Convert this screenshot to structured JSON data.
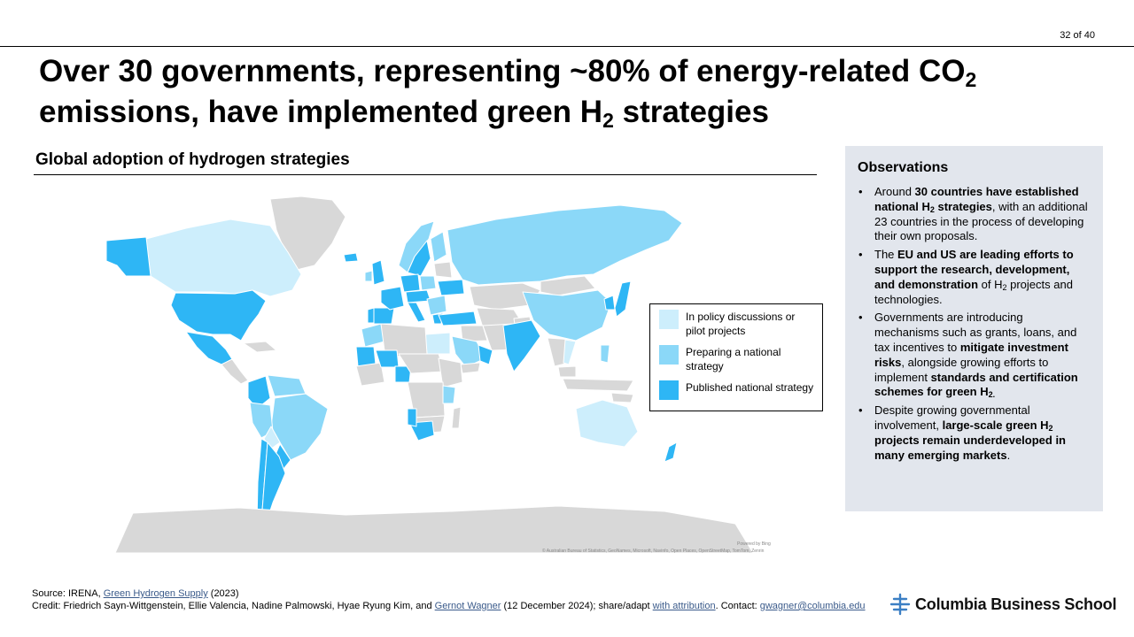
{
  "page": {
    "page_number": "32 of 40",
    "title_line1_pre": "Over 30 governments, representing ~80% of energy-related CO",
    "title_line1_sub": "2",
    "title_line2_pre": "emissions, have implemented green H",
    "title_line2_sub": "2",
    "title_line2_post": " strategies"
  },
  "map": {
    "heading": "Global adoption of hydrogen strategies",
    "credit": "© Australian Bureau of Statistics, GeoNames, Microsoft, Navinfo, Open Places, OpenStreetMap, TomTom, Zenrin",
    "powered_by": "Powered by Bing",
    "legend": [
      {
        "label": "In policy discussions or pilot projects",
        "color": "#cdeefc"
      },
      {
        "label": "Preparing a national strategy",
        "color": "#8bd8f8"
      },
      {
        "label": "Published national strategy",
        "color": "#2eb6f5"
      }
    ],
    "no_data_color": "#d8d8d8"
  },
  "observations": {
    "heading": "Observations",
    "items": [
      {
        "parts": [
          {
            "t": "Around "
          },
          {
            "t": "30 countries have established national H",
            "b": true
          },
          {
            "t": "2",
            "b": true,
            "sub": true
          },
          {
            "t": " strategies",
            "b": true
          },
          {
            "t": ", with an additional 23 countries in the process of developing their own proposals."
          }
        ]
      },
      {
        "parts": [
          {
            "t": "The "
          },
          {
            "t": "EU and US are leading efforts to support the research, development, and demonstration",
            "b": true
          },
          {
            "t": " of H"
          },
          {
            "t": "2",
            "sub": true
          },
          {
            "t": " projects and technologies."
          }
        ]
      },
      {
        "parts": [
          {
            "t": "Governments are introducing mechanisms such as grants, loans, and tax incentives to "
          },
          {
            "t": "mitigate investment risks",
            "b": true
          },
          {
            "t": ", alongside growing efforts to implement "
          },
          {
            "t": "standards and certification schemes for green H",
            "b": true
          },
          {
            "t": "2.",
            "b": true,
            "sub": true
          }
        ]
      },
      {
        "parts": [
          {
            "t": "Despite growing governmental involvement, "
          },
          {
            "t": "large-scale green H",
            "b": true
          },
          {
            "t": "2",
            "b": true,
            "sub": true
          },
          {
            "t": " projects remain underdeveloped in many emerging markets",
            "b": true
          },
          {
            "t": "."
          }
        ]
      }
    ]
  },
  "source": {
    "line1_pre": "Source: IRENA, ",
    "line1_link": "Green Hydrogen Supply",
    "line1_post": " (2023)",
    "line2_pre": "Credit: Friedrich Sayn-Wittgenstein, Ellie Valencia, Nadine Palmowski, Hyae Ryung Kim, and ",
    "line2_link1": "Gernot Wagner",
    "line2_mid": " (12 December 2024); share/adapt ",
    "line2_link2": "with attribution",
    "line2_mid2": ". Contact: ",
    "line2_link3": "gwagner@columbia.edu"
  },
  "logo": {
    "text": "Columbia Business School"
  }
}
